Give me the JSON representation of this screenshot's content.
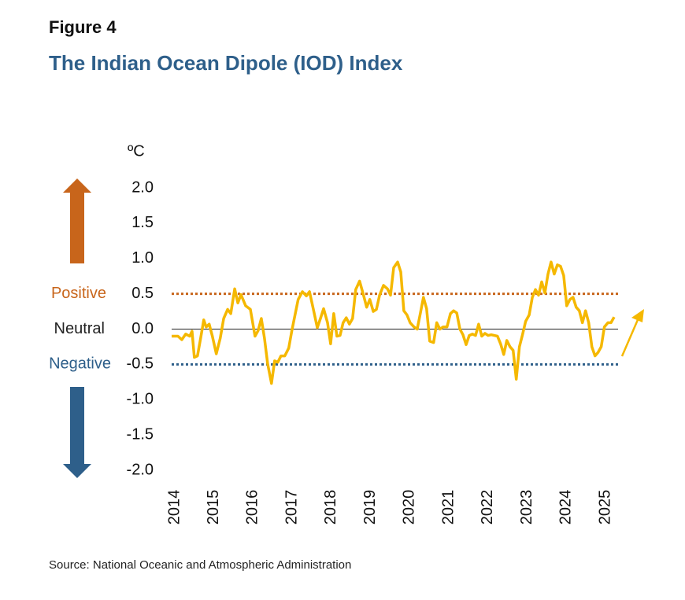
{
  "chart_data": {
    "type": "line",
    "title": "Figure 4",
    "subtitle": "The Indian Ocean Dipole (IOD) Index",
    "y_unit": "ºC",
    "source": "Source: National Oceanic and Atmospheric Administration",
    "color": "#f5b800",
    "x": [
      2013.92,
      2014.08,
      2014.18,
      2014.28,
      2014.38,
      2014.44,
      2014.5,
      2014.58,
      2014.66,
      2014.74,
      2014.8,
      2014.88,
      2014.96,
      2015.06,
      2015.16,
      2015.25,
      2015.35,
      2015.43,
      2015.53,
      2015.61,
      2015.69,
      2015.81,
      2015.93,
      2016.05,
      2016.13,
      2016.21,
      2016.29,
      2016.37,
      2016.47,
      2016.55,
      2016.63,
      2016.71,
      2016.81,
      2016.91,
      2016.99,
      2017.07,
      2017.15,
      2017.26,
      2017.36,
      2017.44,
      2017.54,
      2017.64,
      2017.72,
      2017.8,
      2017.9,
      2017.98,
      2018.06,
      2018.14,
      2018.22,
      2018.3,
      2018.38,
      2018.46,
      2018.54,
      2018.62,
      2018.72,
      2018.82,
      2018.9,
      2018.98,
      2019.07,
      2019.15,
      2019.23,
      2019.33,
      2019.43,
      2019.51,
      2019.59,
      2019.69,
      2019.77,
      2019.85,
      2019.93,
      2020.01,
      2020.11,
      2020.19,
      2020.27,
      2020.35,
      2020.43,
      2020.51,
      2020.61,
      2020.69,
      2020.77,
      2020.85,
      2020.95,
      2021.04,
      2021.12,
      2021.2,
      2021.28,
      2021.36,
      2021.44,
      2021.52,
      2021.6,
      2021.68,
      2021.76,
      2021.84,
      2021.92,
      2022.0,
      2022.08,
      2022.16,
      2022.24,
      2022.32,
      2022.4,
      2022.48,
      2022.56,
      2022.64,
      2022.72,
      2022.8,
      2022.88,
      2022.96,
      2023.05,
      2023.13,
      2023.21,
      2023.29,
      2023.37,
      2023.45,
      2023.53,
      2023.61,
      2023.69,
      2023.77,
      2023.85,
      2023.93,
      2024.01,
      2024.09,
      2024.17,
      2024.25,
      2024.33,
      2024.41,
      2024.49,
      2024.57,
      2024.65,
      2024.73,
      2024.81,
      2024.89,
      2024.97,
      2025.06,
      2025.14,
      2025.22
    ],
    "values": [
      -0.1,
      -0.1,
      -0.15,
      -0.07,
      -0.1,
      -0.03,
      -0.4,
      -0.38,
      -0.13,
      0.13,
      0.03,
      0.07,
      -0.1,
      -0.35,
      -0.13,
      0.15,
      0.28,
      0.22,
      0.57,
      0.37,
      0.49,
      0.33,
      0.28,
      -0.1,
      -0.02,
      0.15,
      -0.13,
      -0.49,
      -0.77,
      -0.45,
      -0.47,
      -0.38,
      -0.38,
      -0.27,
      -0.02,
      0.2,
      0.42,
      0.53,
      0.47,
      0.53,
      0.28,
      0.02,
      0.15,
      0.29,
      0.09,
      -0.21,
      0.22,
      -0.1,
      -0.09,
      0.09,
      0.16,
      0.07,
      0.15,
      0.56,
      0.68,
      0.48,
      0.31,
      0.42,
      0.25,
      0.28,
      0.48,
      0.62,
      0.57,
      0.48,
      0.87,
      0.95,
      0.81,
      0.26,
      0.2,
      0.09,
      0.03,
      0,
      0.22,
      0.45,
      0.29,
      -0.17,
      -0.19,
      0.09,
      0,
      0.03,
      0.03,
      0.22,
      0.26,
      0.23,
      0,
      -0.08,
      -0.22,
      -0.09,
      -0.07,
      -0.09,
      0.07,
      -0.1,
      -0.06,
      -0.09,
      -0.08,
      -0.09,
      -0.1,
      -0.21,
      -0.36,
      -0.16,
      -0.25,
      -0.3,
      -0.71,
      -0.25,
      -0.08,
      0.11,
      0.2,
      0.45,
      0.56,
      0.48,
      0.67,
      0.51,
      0.78,
      0.95,
      0.78,
      0.91,
      0.89,
      0.76,
      0.33,
      0.42,
      0.45,
      0.31,
      0.26,
      0.09,
      0.26,
      0.09,
      -0.25,
      -0.38,
      -0.33,
      -0.25,
      0.03,
      0.09,
      0.09,
      0.17
    ],
    "xlim": [
      2013.92,
      2025.32
    ],
    "xticks": [
      2014,
      2015,
      2016,
      2017,
      2018,
      2019,
      2020,
      2021,
      2022,
      2023,
      2024,
      2025
    ],
    "ylim": [
      -2,
      2
    ],
    "yticks": [
      {
        "value": 2,
        "label": "2.0"
      },
      {
        "value": 1.5,
        "label": "1.5"
      },
      {
        "value": 1,
        "label": "1.0"
      },
      {
        "value": 0.5,
        "label": "0.5"
      },
      {
        "value": 0,
        "label": "0.0"
      },
      {
        "value": -0.5,
        "label": "-0.5"
      },
      {
        "value": -1,
        "label": "-1.0"
      },
      {
        "value": -1.5,
        "label": "-1.5"
      },
      {
        "value": -2,
        "label": "-2.0"
      }
    ],
    "reference_lines": [
      {
        "label": "Positive",
        "value": 0.5,
        "color": "#c8651b",
        "style": "dotted"
      },
      {
        "label": "Neutral",
        "value": 0,
        "color": "#222222",
        "style": "solid"
      },
      {
        "label": "Negative",
        "value": -0.5,
        "color": "#2e5f8a",
        "style": "dotted"
      }
    ]
  }
}
